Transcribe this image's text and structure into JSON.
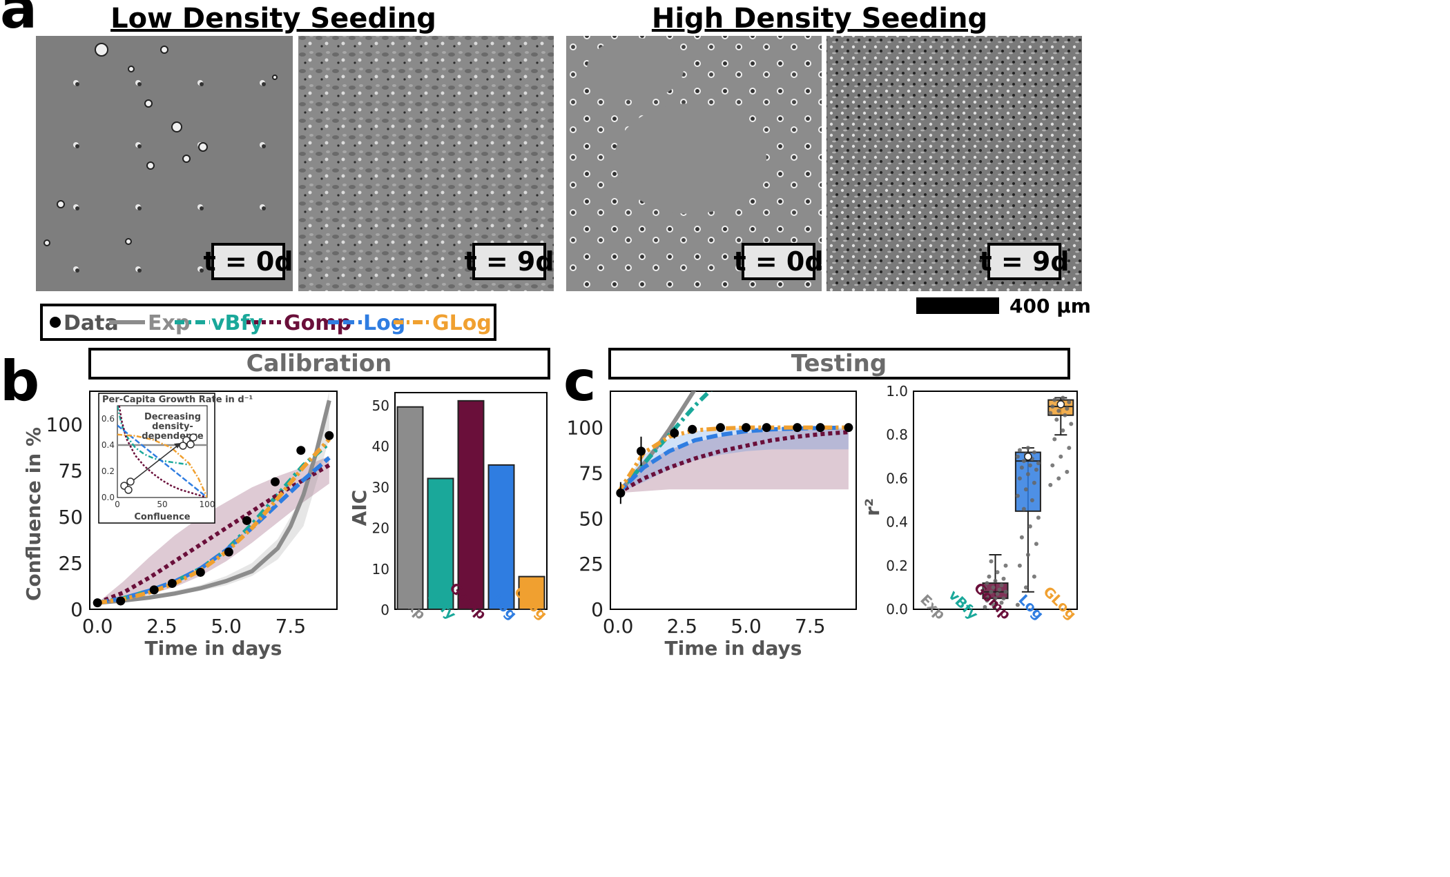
{
  "panel_a": {
    "letter": "a",
    "low_heading": "Low Density Seeding",
    "high_heading": "High Density Seeding",
    "micrographs": [
      {
        "label": "t = 0d"
      },
      {
        "label": "t = 9d"
      },
      {
        "label": "t = 0d"
      },
      {
        "label": "t = 9d"
      }
    ],
    "scale_bar": "400 μm"
  },
  "colors": {
    "Data": "#000000",
    "Exp": "#8c8c8c",
    "vBfy": "#1aa89a",
    "Gomp": "#6a0f3a",
    "Log": "#2f7de1",
    "GLog": "#f0a030"
  },
  "legend": {
    "items": [
      {
        "name": "Data",
        "label": "Data"
      },
      {
        "name": "Exp",
        "label": "Exp"
      },
      {
        "name": "vBfy",
        "label": "vBfy"
      },
      {
        "name": "Gomp",
        "label": "Gomp"
      },
      {
        "name": "Log",
        "label": "Log"
      },
      {
        "name": "GLog",
        "label": "GLog"
      }
    ]
  },
  "panel_b": {
    "letter": "b",
    "title": "Calibration"
  },
  "panel_c": {
    "letter": "c",
    "title": "Testing"
  },
  "chart_data": [
    {
      "id": "calibration-growth",
      "type": "line",
      "title": "Calibration",
      "xlabel": "Time in days",
      "ylabel": "Confluence in %",
      "xlim": [
        -0.3,
        9.3
      ],
      "ylim": [
        0,
        118
      ],
      "xticks": [
        0.0,
        2.5,
        5.0,
        7.5
      ],
      "yticks": [
        0,
        25,
        50,
        75,
        100
      ],
      "data_points": {
        "x": [
          0.0,
          0.9,
          2.2,
          2.9,
          4.0,
          5.1,
          5.8,
          6.9,
          7.9,
          9.0
        ],
        "y": [
          3.5,
          4.5,
          10.5,
          14,
          20,
          31,
          48,
          69,
          86,
          94
        ]
      },
      "series": [
        {
          "name": "Exp",
          "x": [
            0,
            1,
            2,
            3,
            4,
            5,
            6,
            7,
            7.5,
            8,
            8.5,
            9
          ],
          "y": [
            3.5,
            4.7,
            6.3,
            8.5,
            11.4,
            15.3,
            20.6,
            33,
            45,
            62,
            85,
            113
          ]
        },
        {
          "name": "vBfy",
          "x": [
            0,
            1,
            2,
            3,
            4,
            5,
            6,
            7,
            8,
            9
          ],
          "y": [
            3.5,
            6,
            10,
            15,
            22,
            32,
            46,
            62,
            78,
            90
          ]
        },
        {
          "name": "Gomp",
          "x": [
            0,
            1,
            2,
            3,
            4,
            5,
            6,
            7,
            8,
            9
          ],
          "y": [
            3.5,
            9,
            17,
            26,
            35,
            44,
            53,
            62,
            70,
            78
          ]
        },
        {
          "name": "Log",
          "x": [
            0,
            1,
            2,
            3,
            4,
            5,
            6,
            7,
            8,
            9
          ],
          "y": [
            3.5,
            6,
            10,
            15,
            22,
            32,
            44,
            57,
            70,
            82
          ]
        },
        {
          "name": "GLog",
          "x": [
            0,
            1,
            2,
            3,
            4,
            5,
            6,
            7,
            8,
            9
          ],
          "y": [
            3.5,
            5.5,
            9,
            14,
            21,
            31,
            44,
            60,
            77,
            92
          ]
        }
      ],
      "bands": [
        {
          "name": "Gomp",
          "x": [
            0,
            1,
            2,
            3,
            4,
            5,
            6,
            7,
            8,
            9
          ],
          "low": [
            3.5,
            5,
            8,
            12,
            18,
            26,
            36,
            47,
            58,
            68
          ],
          "high": [
            3.5,
            15,
            28,
            40,
            50,
            58,
            66,
            72,
            77,
            83
          ]
        },
        {
          "name": "Exp",
          "x": [
            0,
            1,
            2,
            3,
            4,
            5,
            6,
            7,
            8,
            9
          ],
          "low": [
            3.5,
            4,
            5.5,
            7.5,
            10,
            13,
            18,
            27,
            45,
            92
          ],
          "high": [
            3.5,
            5.5,
            7.5,
            10,
            13,
            18,
            25,
            38,
            62,
            118
          ]
        }
      ],
      "inset": {
        "title": "Per-Capita Growth Rate in d⁻¹",
        "xlabel": "Confluence",
        "xlim": [
          0,
          100
        ],
        "ylim": [
          0,
          0.7
        ],
        "xticks": [
          0,
          50,
          100
        ],
        "yticks": [
          0.0,
          0.2,
          0.4,
          0.6
        ],
        "annotation": [
          "Decreasing",
          "density-",
          "dependence"
        ],
        "series": [
          {
            "name": "Exp",
            "x": [
              0,
              100
            ],
            "y": [
              0.4,
              0.4
            ]
          },
          {
            "name": "vBfy",
            "x": [
              0,
              5,
              10,
              20,
              30,
              40,
              50,
              60,
              70,
              80
            ],
            "y": [
              0.7,
              0.55,
              0.47,
              0.38,
              0.33,
              0.3,
              0.28,
              0.27,
              0.26,
              0.25
            ]
          },
          {
            "name": "Gomp",
            "x": [
              2,
              5,
              10,
              20,
              30,
              40,
              50,
              60,
              70,
              80,
              90,
              100
            ],
            "y": [
              0.7,
              0.58,
              0.45,
              0.32,
              0.24,
              0.18,
              0.13,
              0.09,
              0.06,
              0.04,
              0.02,
              0
            ]
          },
          {
            "name": "Log",
            "x": [
              0,
              20,
              40,
              60,
              80,
              100
            ],
            "y": [
              0.55,
              0.44,
              0.33,
              0.22,
              0.11,
              0
            ]
          },
          {
            "name": "GLog",
            "x": [
              0,
              20,
              40,
              60,
              80,
              90,
              100
            ],
            "y": [
              0.48,
              0.47,
              0.44,
              0.38,
              0.26,
              0.15,
              0
            ]
          }
        ]
      }
    },
    {
      "id": "calibration-aic",
      "type": "bar",
      "ylabel": "AIC",
      "ylim": [
        0,
        53
      ],
      "yticks": [
        0,
        10,
        20,
        30,
        40,
        50
      ],
      "categories": [
        "Exp",
        "vBfy",
        "Gomp",
        "Log",
        "GLog"
      ],
      "values": [
        49.5,
        32,
        51,
        35.3,
        8
      ]
    },
    {
      "id": "testing-growth",
      "type": "line",
      "title": "Testing",
      "xlabel": "Time in days",
      "ylabel": "",
      "xlim": [
        -0.3,
        9.3
      ],
      "ylim": [
        0,
        120
      ],
      "xticks": [
        0.0,
        2.5,
        5.0,
        7.5
      ],
      "yticks": [
        0,
        25,
        50,
        75,
        100
      ],
      "data_points": {
        "x": [
          0.1,
          0.9,
          2.2,
          2.9,
          4.0,
          5.0,
          5.8,
          7.0,
          7.9,
          9.0
        ],
        "y": [
          64,
          87,
          97,
          99,
          100,
          100,
          100,
          100,
          100,
          100
        ],
        "err": [
          6,
          8,
          3,
          2,
          0.5,
          0.5,
          0.5,
          0.5,
          0.5,
          0.5
        ]
      },
      "series": [
        {
          "name": "Exp",
          "x": [
            0,
            0.5,
            1,
            1.5,
            2,
            2.5,
            3,
            3.2
          ],
          "y": [
            64,
            72,
            80,
            89,
            99,
            110,
            121,
            126
          ]
        },
        {
          "name": "vBfy",
          "x": [
            0,
            0.5,
            1,
            1.5,
            2,
            2.5,
            3,
            3.5,
            4,
            4.2
          ],
          "y": [
            64,
            72,
            80,
            88,
            96,
            104,
            112,
            119,
            126,
            130
          ]
        },
        {
          "name": "Gomp",
          "x": [
            0,
            1,
            2,
            3,
            4,
            5,
            6,
            7,
            8,
            9
          ],
          "y": [
            64,
            72,
            78,
            83,
            87,
            90,
            93,
            95,
            96.5,
            97.5
          ]
        },
        {
          "name": "Log",
          "x": [
            0,
            1,
            2,
            3,
            4,
            5,
            6,
            7,
            8,
            9
          ],
          "y": [
            64,
            78,
            87,
            93,
            96,
            98,
            99,
            99.5,
            99.8,
            100
          ]
        },
        {
          "name": "GLog",
          "x": [
            0,
            1,
            2,
            3,
            4,
            5,
            6,
            7,
            8,
            9
          ],
          "y": [
            64,
            86,
            95,
            98.5,
            99.5,
            100,
            100,
            100,
            100,
            100
          ]
        }
      ],
      "bands": [
        {
          "name": "Gomp",
          "x": [
            0,
            1,
            2,
            3,
            4,
            5,
            6,
            7,
            8,
            9
          ],
          "low": [
            64,
            65,
            66,
            66,
            66,
            66,
            66,
            66,
            66,
            66
          ],
          "high": [
            64,
            80,
            88,
            92,
            95,
            97,
            98,
            98.5,
            99,
            99.3
          ]
        },
        {
          "name": "Log",
          "x": [
            0,
            1,
            2,
            3,
            4,
            5,
            6,
            7,
            8,
            9
          ],
          "low": [
            64,
            70,
            77,
            82,
            85,
            87,
            88,
            88,
            88,
            88
          ],
          "high": [
            64,
            85,
            94,
            98,
            99.5,
            100,
            100,
            100,
            100,
            100
          ]
        }
      ]
    },
    {
      "id": "testing-r2",
      "type": "box",
      "ylabel": "r²",
      "ylim": [
        0,
        1.0
      ],
      "yticks": [
        0.0,
        0.2,
        0.4,
        0.6,
        0.8,
        1.0
      ],
      "categories": [
        "Exp",
        "vBfy",
        "Gomp",
        "Log",
        "GLog"
      ],
      "boxes": [
        {
          "name": "Exp",
          "q1": 0,
          "median": 0,
          "q3": 0,
          "whisker_low": 0,
          "whisker_high": 0,
          "mean": null,
          "points": []
        },
        {
          "name": "vBfy",
          "q1": 0,
          "median": 0,
          "q3": 0,
          "whisker_low": 0,
          "whisker_high": 0,
          "mean": null,
          "points": []
        },
        {
          "name": "Gomp",
          "q1": 0.05,
          "median": 0.08,
          "q3": 0.12,
          "whisker_low": 0.0,
          "whisker_high": 0.25,
          "mean": 0.09,
          "points": [
            0.01,
            0.02,
            0.03,
            0.04,
            0.05,
            0.05,
            0.06,
            0.07,
            0.08,
            0.08,
            0.09,
            0.1,
            0.1,
            0.11,
            0.12,
            0.13,
            0.14,
            0.15,
            0.17,
            0.2,
            0.22
          ]
        },
        {
          "name": "Log",
          "q1": 0.45,
          "median": 0.68,
          "q3": 0.72,
          "whisker_low": 0.08,
          "whisker_high": 0.74,
          "mean": 0.7,
          "points": [
            0.02,
            0.1,
            0.15,
            0.2,
            0.25,
            0.3,
            0.33,
            0.38,
            0.42,
            0.46,
            0.5,
            0.52,
            0.55,
            0.58,
            0.6,
            0.62,
            0.64,
            0.65,
            0.66,
            0.67,
            0.68,
            0.69,
            0.7,
            0.71,
            0.72,
            0.73,
            0.74
          ]
        },
        {
          "name": "GLog",
          "q1": 0.89,
          "median": 0.93,
          "q3": 0.96,
          "whisker_low": 0.8,
          "whisker_high": 0.97,
          "mean": 0.94,
          "points": [
            0.57,
            0.6,
            0.63,
            0.66,
            0.7,
            0.74,
            0.78,
            0.82,
            0.85,
            0.87,
            0.89,
            0.9,
            0.91,
            0.92,
            0.93,
            0.94,
            0.95,
            0.96,
            0.97
          ]
        }
      ]
    }
  ]
}
